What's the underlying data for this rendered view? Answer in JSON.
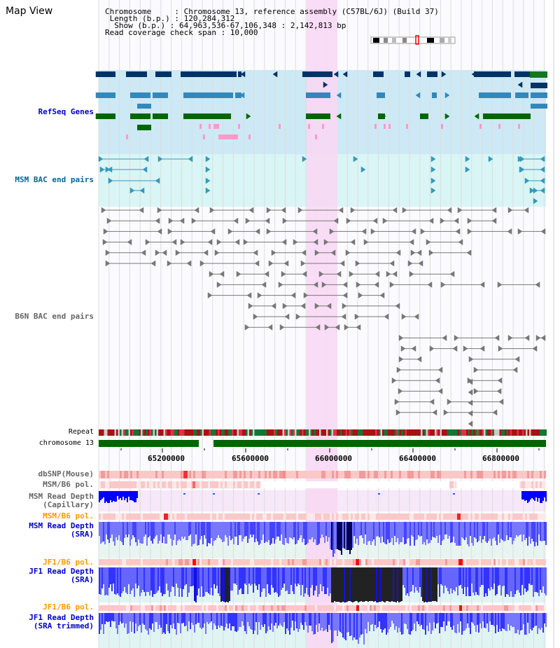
{
  "page": {
    "title": "Map View"
  },
  "header": {
    "lines": [
      "Chromosome     : Chromosome 13, reference assembly (C57BL/6J) (Build 37)",
      " Length (b.p.) : 120,284,312",
      "  Show (b.p.) : 64,963,536-67,106,348 : 2,142,813 bp",
      "Read coverage check span : 10,000"
    ]
  },
  "tracks": {
    "refseq": {
      "label": "RefSeq Genes",
      "color": "#0000cc"
    },
    "msm_bac": {
      "label": "MSM BAC end pairs",
      "color": "#006699"
    },
    "b6n_bac": {
      "label": "B6N BAC end pairs",
      "color": "#666666"
    },
    "repeat": {
      "label": "Repeat"
    },
    "chromosome": {
      "label": "chromosome 13"
    },
    "dbsnp": {
      "label": "dbSNP(Mouse)",
      "color": "#666666"
    },
    "msm_pol": {
      "label": "MSM/B6 pol.",
      "color": "#666666"
    },
    "msm_cap": {
      "label": "MSM Read Depth\n(Capillary)",
      "color": "#666666"
    },
    "msm_pol2": {
      "label": "MSM/B6 pol.",
      "color": "#ff9900"
    },
    "msm_sra": {
      "label": "MSM Read Depth\n(SRA)",
      "color": "#0000cc"
    },
    "jf1_pol": {
      "label": "JF1/B6 pol.",
      "color": "#ff9900"
    },
    "jf1_sra": {
      "label": "JF1 Read Depth\n(SRA)",
      "color": "#0000cc"
    },
    "jf1_pol2": {
      "label": "JF1/B6 pol.",
      "color": "#ff9900"
    },
    "jf1_trim": {
      "label": "JF1 Read Depth\n(SRA trimmed)",
      "color": "#0000cc"
    }
  },
  "axis": {
    "ticks": [
      "65200000",
      "65600000",
      "66000000",
      "66400000",
      "66800000"
    ]
  },
  "colors": {
    "highlight": "#f8d8f4",
    "refseq_bg": "#cce9f5",
    "msm_bg": "#d9f5f5",
    "gene_dark": "#003366",
    "gene_mid": "#3388bb",
    "gene_green": "#006600",
    "gene_pink": "#ff99cc",
    "chrom_green": "#006600",
    "depth_blue": "#0000ff"
  }
}
